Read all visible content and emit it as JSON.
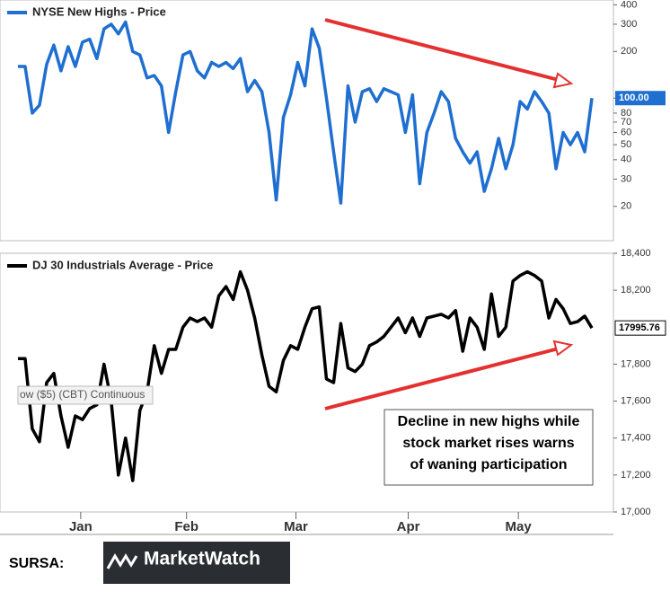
{
  "chart_data": [
    {
      "type": "line",
      "title": "NYSE New Highs - Price",
      "log_scale": true,
      "series": [
        {
          "name": "NYSE New Highs - Price",
          "color": "#1f6fd1",
          "values": [
            160,
            160,
            80,
            90,
            165,
            220,
            150,
            215,
            160,
            230,
            240,
            180,
            280,
            300,
            260,
            310,
            200,
            190,
            135,
            140,
            120,
            60,
            110,
            190,
            200,
            150,
            135,
            170,
            160,
            170,
            155,
            180,
            110,
            130,
            110,
            60,
            22,
            75,
            105,
            170,
            120,
            280,
            210,
            100,
            45,
            21,
            120,
            70,
            110,
            115,
            95,
            115,
            110,
            105,
            60,
            105,
            28,
            60,
            80,
            110,
            95,
            55,
            45,
            38,
            45,
            25,
            35,
            55,
            35,
            50,
            95,
            85,
            110,
            95,
            80,
            35,
            60,
            50,
            60,
            45,
            100
          ]
        }
      ],
      "last_label": "100.00",
      "xlim": [
        -2.5,
        83
      ],
      "ylim": [
        12,
        430
      ],
      "yticks": [
        400,
        300,
        200,
        100,
        80,
        70,
        60,
        50,
        40,
        30,
        20
      ]
    },
    {
      "type": "line",
      "title": "DJ 30 Industrials Average - Price",
      "series": [
        {
          "name": "DJ 30 Industrials Average - Price",
          "color": "#000000",
          "values": [
            17830,
            17830,
            17450,
            17380,
            17700,
            17750,
            17520,
            17350,
            17520,
            17500,
            17560,
            17580,
            17800,
            17600,
            17200,
            17400,
            17170,
            17550,
            17650,
            17900,
            17750,
            17880,
            17880,
            18000,
            18050,
            18030,
            18050,
            18000,
            18170,
            18220,
            18150,
            18300,
            18200,
            18050,
            17850,
            17680,
            17650,
            17820,
            17900,
            17880,
            18000,
            18100,
            18110,
            17720,
            17700,
            18020,
            17780,
            17760,
            17800,
            17900,
            17920,
            17950,
            18000,
            18050,
            17970,
            18050,
            17950,
            18050,
            18060,
            18070,
            18050,
            18090,
            17870,
            18050,
            18000,
            17880,
            18180,
            17950,
            18000,
            18250,
            18280,
            18300,
            18280,
            18250,
            18050,
            18150,
            18100,
            18020,
            18030,
            18060,
            17995.76
          ]
        }
      ],
      "last_label": "17995.76",
      "overlay_label": "ow ($5) (CBT) Continuous",
      "annotation": [
        "Decline in new highs while",
        "stock market rises warns",
        "of waning participation"
      ],
      "xlim": [
        -2.5,
        83
      ],
      "ylim": [
        17000,
        18400
      ],
      "xticks": [
        {
          "value": 8.75,
          "label": "Jan"
        },
        {
          "value": 23.5,
          "label": "Feb"
        },
        {
          "value": 38.75,
          "label": "Mar"
        },
        {
          "value": 54.4,
          "label": "Apr"
        },
        {
          "value": 69.75,
          "label": "May"
        }
      ],
      "yticks": [
        {
          "value": 18400,
          "label": "18,400"
        },
        {
          "value": 18200,
          "label": "18,200"
        },
        {
          "value": 17800,
          "label": "17,800"
        },
        {
          "value": 17600,
          "label": "17,600"
        },
        {
          "value": 17400,
          "label": "17,400"
        },
        {
          "value": 17200,
          "label": "17,200"
        },
        {
          "value": 17000,
          "label": "17,000"
        }
      ]
    }
  ],
  "source": {
    "label": "SURSA:",
    "logo": "MarketWatch"
  }
}
